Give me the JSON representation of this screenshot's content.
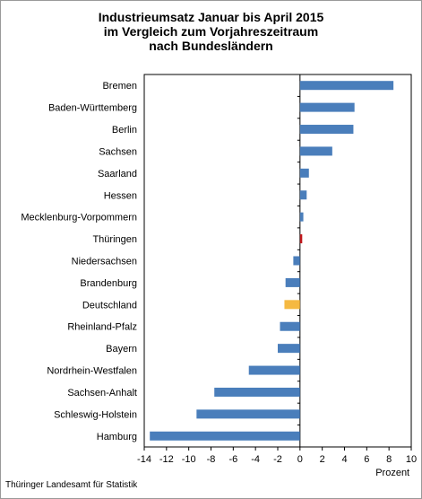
{
  "chart_data": {
    "type": "bar",
    "orientation": "horizontal",
    "title_lines": [
      "Industrieumsatz Januar bis April 2015",
      "im Vergleich zum Vorjahreszeitraum",
      "nach Bundesländern"
    ],
    "categories": [
      "Bremen",
      "Baden-Württemberg",
      "Berlin",
      "Sachsen",
      "Saarland",
      "Hessen",
      "Mecklenburg-Vorpommern",
      "Thüringen",
      "Niedersachsen",
      "Brandenburg",
      "Deutschland",
      "Rheinland-Pfalz",
      "Bayern",
      "Nordrhein-Westfalen",
      "Sachsen-Anhalt",
      "Schleswig-Holstein",
      "Hamburg"
    ],
    "values": [
      8.4,
      4.9,
      4.8,
      2.9,
      0.8,
      0.6,
      0.3,
      0.2,
      -0.6,
      -1.3,
      -1.4,
      -1.8,
      -2.0,
      -4.6,
      -7.7,
      -9.3,
      -13.5
    ],
    "bar_colors": [
      "#4a7ebb",
      "#4a7ebb",
      "#4a7ebb",
      "#4a7ebb",
      "#4a7ebb",
      "#4a7ebb",
      "#4a7ebb",
      "#c0161b",
      "#4a7ebb",
      "#4a7ebb",
      "#f5b942",
      "#4a7ebb",
      "#4a7ebb",
      "#4a7ebb",
      "#4a7ebb",
      "#4a7ebb",
      "#4a7ebb"
    ],
    "xlim": [
      -14,
      10
    ],
    "xticks": [
      -14,
      -12,
      -10,
      -8,
      -6,
      -4,
      -2,
      0,
      2,
      4,
      6,
      8,
      10
    ],
    "xlabel": "Prozent",
    "grid": false,
    "legend": "none"
  },
  "source": "Thüringer Landesamt für Statistik"
}
